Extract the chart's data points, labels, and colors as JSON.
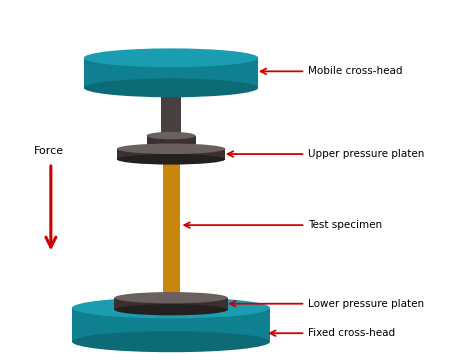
{
  "background_color": "#ffffff",
  "teal_color": "#1a9db0",
  "teal_dark": "#0d6b78",
  "teal_side": "#0f8090",
  "shaft_color": "#4a4040",
  "shaft_dark": "#2a2020",
  "platen_top": "#6a6060",
  "platen_side": "#3a3030",
  "platen_dark": "#252020",
  "gold_color": "#c8860a",
  "gold_dark": "#8a5a00",
  "gold_light": "#d4940c",
  "red_color": "#cc0000",
  "labels": {
    "mobile_crosshead": "Mobile cross-head",
    "upper_platen": "Upper pressure platen",
    "test_specimen": "Test specimen",
    "lower_platen": "Lower pressure platen",
    "fixed_crosshead": "Fixed cross-head",
    "force": "Force"
  },
  "figsize": [
    4.74,
    3.6
  ],
  "dpi": 100
}
